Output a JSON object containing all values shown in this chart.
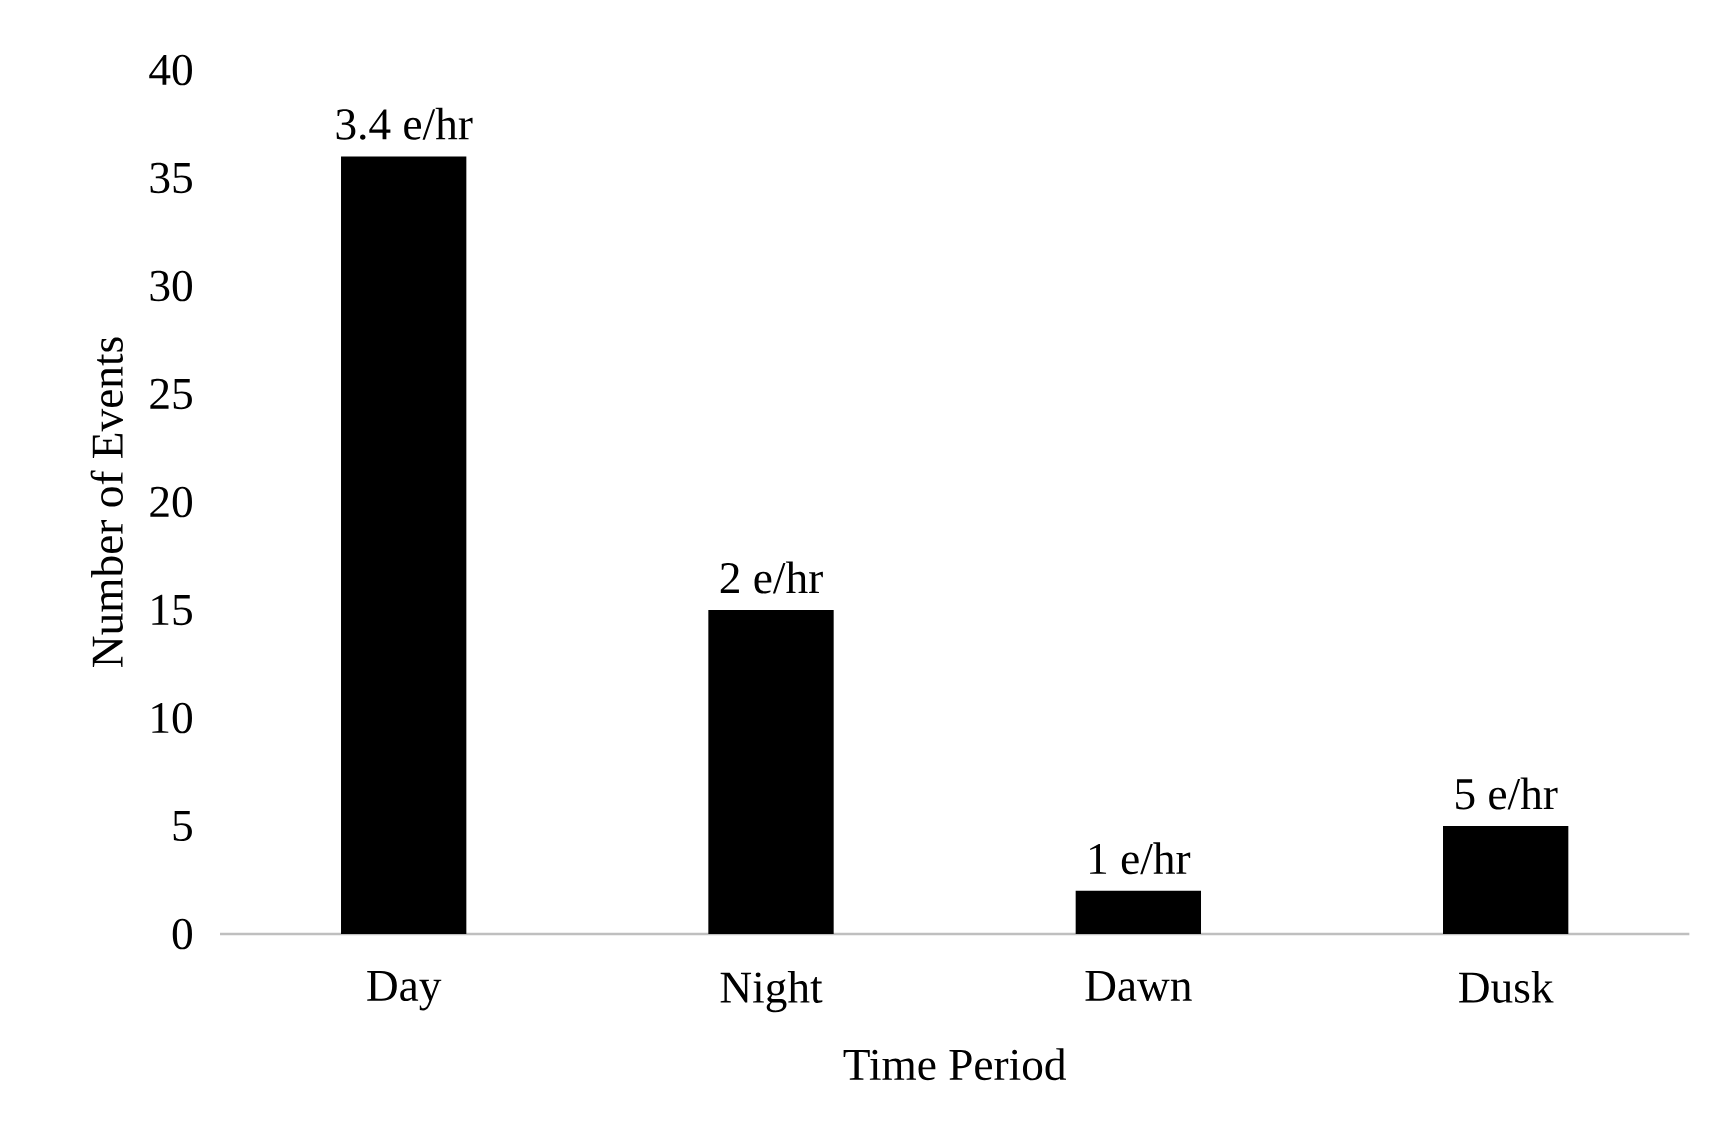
{
  "chart_data": {
    "type": "bar",
    "xlabel": "Time Period",
    "ylabel": "Number of Events",
    "categories": [
      "Day",
      "Night",
      "Dawn",
      "Dusk"
    ],
    "values": [
      36,
      15,
      2,
      5
    ],
    "annotations": [
      {
        "text": "3.4 e/hr",
        "x": "Day",
        "y": 36
      },
      {
        "text": "2 e/hr",
        "x": "Night",
        "y": 15
      },
      {
        "text": "1 e/hr",
        "x": "Dawn",
        "y": 2
      },
      {
        "text": "5 e/hr",
        "x": "Dusk",
        "y": 5
      }
    ],
    "color": "#000000",
    "ylim": [
      0,
      40
    ],
    "yticks": [
      0,
      5,
      10,
      15,
      20,
      25,
      30,
      35,
      40
    ]
  }
}
